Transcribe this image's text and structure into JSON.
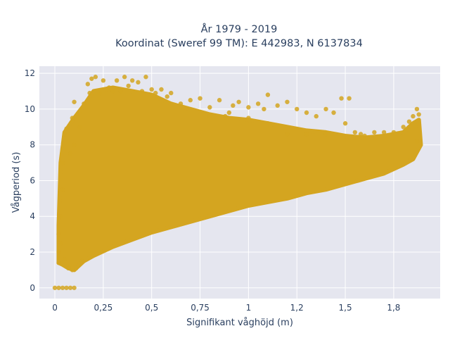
{
  "chart_data": {
    "type": "scatter",
    "title_line1": "År 1979 - 2019",
    "title_line2": "Koordinat (Sweref 99 TM): E 442983, N 6137834",
    "xlabel": "Signifikant våghöjd (m)",
    "ylabel": "Vågperiod (s)",
    "xlim": [
      -0.08,
      1.99
    ],
    "ylim": [
      -0.6,
      12.4
    ],
    "x_ticks": [
      {
        "value": 0,
        "label": "0"
      },
      {
        "value": 0.25,
        "label": "0,25"
      },
      {
        "value": 0.5,
        "label": "0,5"
      },
      {
        "value": 0.75,
        "label": "0,75"
      },
      {
        "value": 1,
        "label": "1"
      },
      {
        "value": 1.25,
        "label": "1,2"
      },
      {
        "value": 1.5,
        "label": "1,5"
      },
      {
        "value": 1.75,
        "label": "1,8"
      }
    ],
    "y_ticks": [
      {
        "value": 0,
        "label": "0"
      },
      {
        "value": 2,
        "label": "2"
      },
      {
        "value": 4,
        "label": "4"
      },
      {
        "value": 6,
        "label": "6"
      },
      {
        "value": 8,
        "label": "8"
      },
      {
        "value": 10,
        "label": "10"
      },
      {
        "value": 12,
        "label": "12"
      }
    ],
    "grid": true,
    "marker_color": "#d4a520",
    "plot_background": "#e5e6ef",
    "series": [
      {
        "values_description_x": "wave height (m)",
        "points": [
          [
            0.0,
            0.0
          ],
          [
            0.02,
            0.0
          ],
          [
            0.04,
            0.0
          ],
          [
            0.06,
            0.0
          ],
          [
            0.08,
            0.0
          ],
          [
            0.1,
            0.0
          ],
          [
            0.02,
            1.4
          ],
          [
            0.02,
            2.0
          ],
          [
            0.02,
            3.0
          ],
          [
            0.03,
            2.5
          ],
          [
            0.05,
            1.6
          ],
          [
            0.07,
            1.1
          ],
          [
            0.09,
            1.0
          ],
          [
            0.11,
            1.1
          ],
          [
            0.14,
            1.5
          ],
          [
            0.03,
            4.0
          ],
          [
            0.04,
            5.5
          ],
          [
            0.04,
            7.0
          ],
          [
            0.05,
            8.6
          ],
          [
            0.06,
            8.9
          ],
          [
            0.08,
            7.5
          ],
          [
            0.09,
            9.5
          ],
          [
            0.1,
            8.0
          ],
          [
            0.1,
            10.4
          ],
          [
            0.13,
            9.0
          ],
          [
            0.15,
            10.3
          ],
          [
            0.17,
            11.4
          ],
          [
            0.18,
            10.9
          ],
          [
            0.19,
            11.7
          ],
          [
            0.21,
            11.8
          ],
          [
            0.23,
            10.9
          ],
          [
            0.25,
            11.6
          ],
          [
            0.28,
            11.2
          ],
          [
            0.3,
            11.0
          ],
          [
            0.32,
            11.6
          ],
          [
            0.34,
            11.0
          ],
          [
            0.36,
            11.8
          ],
          [
            0.38,
            11.3
          ],
          [
            0.4,
            11.6
          ],
          [
            0.43,
            11.5
          ],
          [
            0.45,
            11.0
          ],
          [
            0.47,
            11.8
          ],
          [
            0.5,
            11.1
          ],
          [
            0.52,
            10.9
          ],
          [
            0.55,
            11.1
          ],
          [
            0.58,
            10.7
          ],
          [
            0.6,
            10.9
          ],
          [
            0.65,
            10.3
          ],
          [
            0.7,
            10.5
          ],
          [
            0.75,
            10.6
          ],
          [
            0.8,
            10.1
          ],
          [
            0.85,
            10.5
          ],
          [
            0.88,
            9.6
          ],
          [
            0.92,
            10.2
          ],
          [
            0.95,
            10.4
          ],
          [
            1.0,
            10.1
          ],
          [
            1.05,
            10.3
          ],
          [
            1.08,
            10.0
          ],
          [
            1.1,
            10.8
          ],
          [
            1.15,
            10.2
          ],
          [
            1.2,
            10.4
          ],
          [
            1.25,
            10.0
          ],
          [
            1.3,
            9.8
          ],
          [
            1.35,
            9.6
          ],
          [
            1.4,
            10.0
          ],
          [
            1.44,
            9.8
          ],
          [
            1.48,
            10.6
          ],
          [
            1.52,
            10.6
          ],
          [
            1.55,
            8.7
          ],
          [
            1.58,
            8.6
          ],
          [
            1.6,
            8.5
          ],
          [
            1.65,
            8.7
          ],
          [
            1.7,
            8.7
          ],
          [
            1.75,
            8.7
          ],
          [
            1.8,
            9.0
          ],
          [
            1.83,
            9.3
          ],
          [
            1.85,
            9.6
          ],
          [
            1.87,
            10.0
          ],
          [
            1.88,
            9.7
          ],
          [
            1.87,
            8.2
          ],
          [
            1.2,
            8.6
          ],
          [
            1.3,
            8.6
          ],
          [
            1.4,
            8.6
          ],
          [
            1.5,
            9.2
          ],
          [
            1.0,
            9.5
          ],
          [
            0.9,
            9.8
          ],
          [
            0.8,
            9.6
          ],
          [
            1.1,
            9.2
          ]
        ]
      }
    ]
  }
}
